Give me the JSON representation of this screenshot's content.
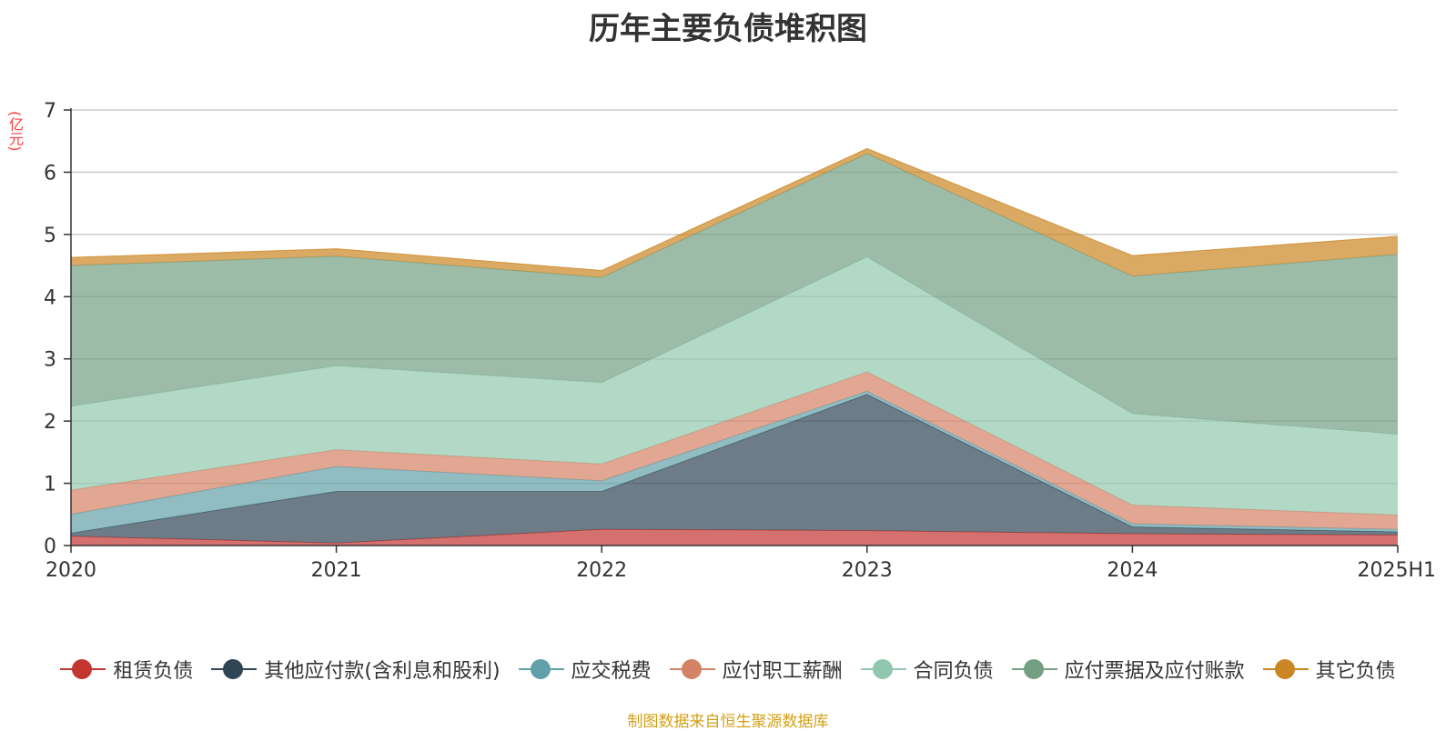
{
  "chart_data": {
    "type": "area",
    "stacked": true,
    "title": "历年主要负债堆积图",
    "ylabel": "(亿元)",
    "categories": [
      "2020",
      "2021",
      "2022",
      "2023",
      "2024",
      "2025H1"
    ],
    "ylim": [
      0,
      7
    ],
    "yticks": [
      0,
      1,
      2,
      3,
      4,
      5,
      6,
      7
    ],
    "grid": true,
    "legend_position": "bottom",
    "series": [
      {
        "name": "租赁负债",
        "color": "#c23531",
        "values": [
          0.15,
          0.04,
          0.26,
          0.24,
          0.19,
          0.17
        ]
      },
      {
        "name": "其他应付款(含利息和股利)",
        "color": "#2f4554",
        "values": [
          0.05,
          0.83,
          0.61,
          2.19,
          0.11,
          0.05
        ]
      },
      {
        "name": "应交税费",
        "color": "#61a0a8",
        "values": [
          0.3,
          0.4,
          0.17,
          0.05,
          0.05,
          0.04
        ]
      },
      {
        "name": "应付职工薪酬",
        "color": "#d48265",
        "values": [
          0.39,
          0.27,
          0.27,
          0.31,
          0.3,
          0.23
        ]
      },
      {
        "name": "合同负债",
        "color": "#91c7ae",
        "values": [
          1.35,
          1.35,
          1.31,
          1.85,
          1.47,
          1.3
        ]
      },
      {
        "name": "应付票据及应付账款",
        "color": "#749f83",
        "values": [
          2.26,
          1.76,
          1.69,
          1.66,
          2.21,
          2.89
        ]
      },
      {
        "name": "其它负债",
        "color": "#ca8622",
        "values": [
          0.13,
          0.12,
          0.11,
          0.08,
          0.33,
          0.29
        ]
      }
    ]
  },
  "source_note": "制图数据来自恒生聚源数据库"
}
